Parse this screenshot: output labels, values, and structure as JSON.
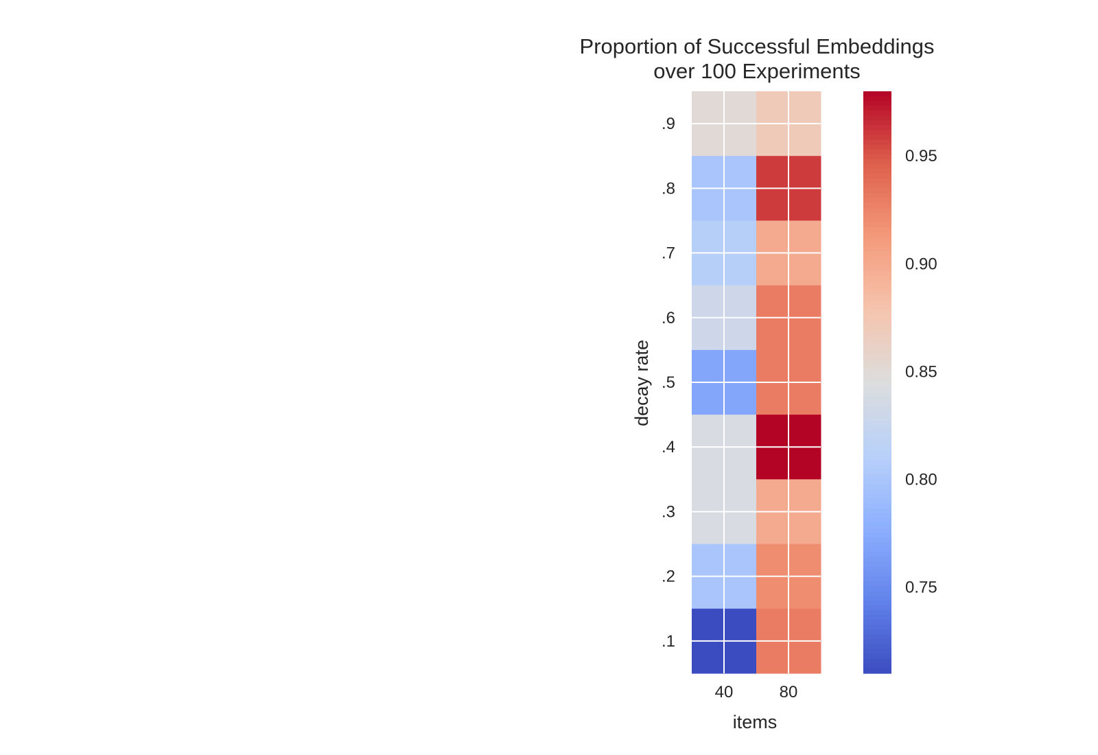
{
  "chart_data": {
    "type": "heatmap",
    "title_lines": [
      "Proportion of Successful Embeddings",
      "over 100 Experiments"
    ],
    "xlabel": "items",
    "ylabel": "decay rate",
    "x_categories": [
      "40",
      "80"
    ],
    "y_categories": [
      ".9",
      ".8",
      ".7",
      ".6",
      ".5",
      ".4",
      ".3",
      ".2",
      ".1"
    ],
    "values": [
      [
        0.85,
        0.87
      ],
      [
        0.8,
        0.96
      ],
      [
        0.81,
        0.9
      ],
      [
        0.83,
        0.93
      ],
      [
        0.77,
        0.93
      ],
      [
        0.84,
        0.98
      ],
      [
        0.84,
        0.9
      ],
      [
        0.8,
        0.92
      ],
      [
        0.71,
        0.93
      ]
    ],
    "vmin": 0.71,
    "vmax": 0.98,
    "colormap": "coolwarm",
    "colorbar_ticks": [
      0.75,
      0.8,
      0.85,
      0.9,
      0.95
    ],
    "colorbar_tick_labels": [
      "0.75",
      "0.80",
      "0.85",
      "0.90",
      "0.95"
    ],
    "colors": {
      "cold": "#3b4cc0",
      "neutral": "#dddddd",
      "warm": "#b40426",
      "text": "#262626",
      "grid": "#ffffff"
    }
  }
}
